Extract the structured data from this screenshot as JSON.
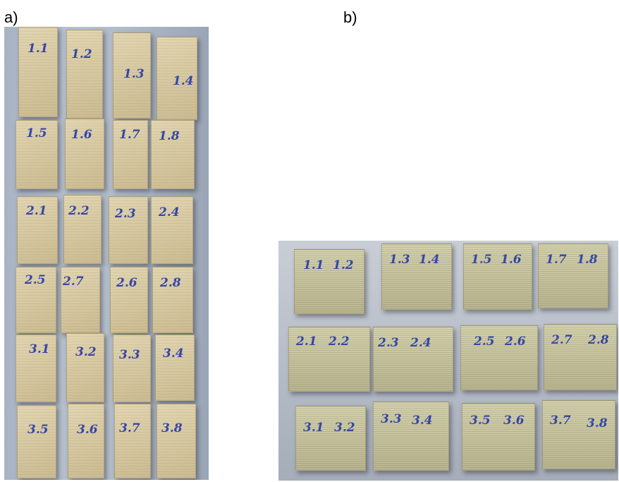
{
  "figure": {
    "panel_a_label": "a)",
    "panel_b_label": "b)"
  },
  "photo_a": {
    "blocks": [
      {
        "label": "1.1"
      },
      {
        "label": "1.2"
      },
      {
        "label": "1.3"
      },
      {
        "label": "1.4"
      },
      {
        "label": "1.5"
      },
      {
        "label": "1.6"
      },
      {
        "label": "1.7"
      },
      {
        "label": "1.8"
      },
      {
        "label": "2.1"
      },
      {
        "label": "2.2"
      },
      {
        "label": "2.3"
      },
      {
        "label": "2.4"
      },
      {
        "label": "2.5"
      },
      {
        "label": "2.7"
      },
      {
        "label": "2.6"
      },
      {
        "label": "2.8"
      },
      {
        "label": "3.1"
      },
      {
        "label": "3.2"
      },
      {
        "label": "3.3"
      },
      {
        "label": "3.4"
      },
      {
        "label": "3.5"
      },
      {
        "label": "3.6"
      },
      {
        "label": "3.7"
      },
      {
        "label": "3.8"
      }
    ]
  },
  "photo_b": {
    "blocks": [
      {
        "label_left": "1.1",
        "label_right": "1.2"
      },
      {
        "label_left": "1.3",
        "label_right": "1.4"
      },
      {
        "label_left": "1.5",
        "label_right": "1.6"
      },
      {
        "label_left": "1.7",
        "label_right": "1.8"
      },
      {
        "label_left": "2.1",
        "label_right": "2.2"
      },
      {
        "label_left": "2.3",
        "label_right": "2.4"
      },
      {
        "label_left": "2.5",
        "label_right": "2.6"
      },
      {
        "label_left": "2.7",
        "label_right": "2.8"
      },
      {
        "label_left": "3.1",
        "label_right": "3.2"
      },
      {
        "label_left": "3.3",
        "label_right": "3.4"
      },
      {
        "label_left": "3.5",
        "label_right": "3.6"
      },
      {
        "label_left": "3.7",
        "label_right": "3.8"
      }
    ]
  },
  "colors": {
    "ink": "#3546a6",
    "wood": "#d5c79f",
    "backdrop": "#b9c3cf"
  }
}
